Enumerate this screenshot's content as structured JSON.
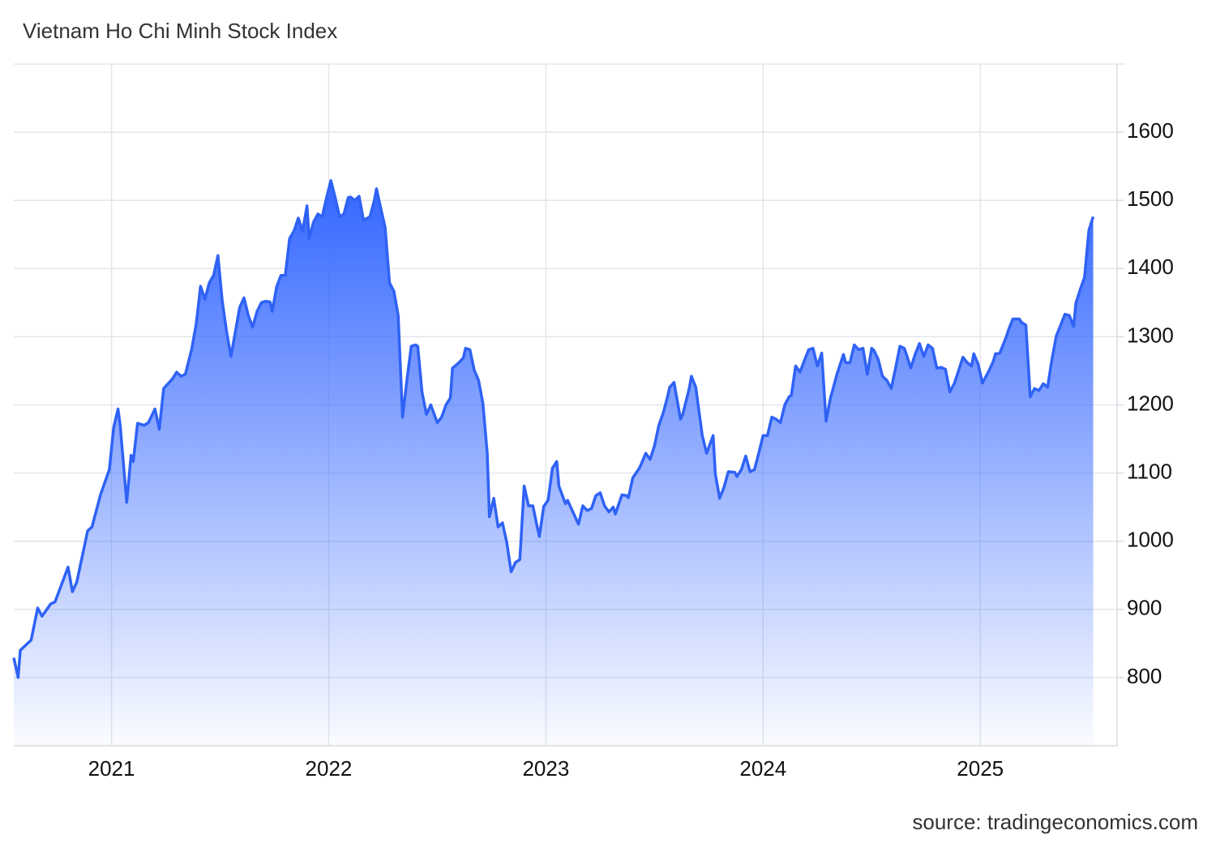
{
  "chart_data": {
    "type": "area",
    "title": "Vietnam Ho Chi Minh Stock Index",
    "source": "source: tradingeconomics.com",
    "color": "#2f62f5",
    "grid": true,
    "xlim": [
      2020.55,
      2025.63
    ],
    "xticks": [
      2021,
      2022,
      2023,
      2024,
      2025
    ],
    "ylim": [
      700,
      1700
    ],
    "yticks": [
      800,
      900,
      1000,
      1100,
      1200,
      1300,
      1400,
      1500,
      1600
    ],
    "x": [
      2020.55,
      2020.57,
      2020.58,
      2020.63,
      2020.66,
      2020.68,
      2020.72,
      2020.74,
      2020.8,
      2020.82,
      2020.84,
      2020.89,
      2020.91,
      2020.95,
      2020.99,
      2021.01,
      2021.03,
      2021.04,
      2021.07,
      2021.09,
      2021.1,
      2021.12,
      2021.15,
      2021.17,
      2021.2,
      2021.22,
      2021.24,
      2021.28,
      2021.3,
      2021.32,
      2021.34,
      2021.37,
      2021.39,
      2021.41,
      2021.43,
      2021.45,
      2021.47,
      2021.49,
      2021.51,
      2021.53,
      2021.55,
      2021.57,
      2021.59,
      2021.61,
      2021.63,
      2021.65,
      2021.67,
      2021.69,
      2021.71,
      2021.73,
      2021.74,
      2021.76,
      2021.78,
      2021.8,
      2021.82,
      2021.84,
      2021.86,
      2021.88,
      2021.9,
      2021.91,
      2021.93,
      2021.95,
      2021.97,
      2021.99,
      2022.01,
      2022.03,
      2022.05,
      2022.07,
      2022.09,
      2022.1,
      2022.12,
      2022.14,
      2022.16,
      2022.19,
      2022.21,
      2022.22,
      2022.24,
      2022.26,
      2022.28,
      2022.3,
      2022.32,
      2022.34,
      2022.36,
      2022.38,
      2022.4,
      2022.41,
      2022.43,
      2022.45,
      2022.47,
      2022.5,
      2022.52,
      2022.54,
      2022.56,
      2022.57,
      2022.6,
      2022.62,
      2022.63,
      2022.65,
      2022.67,
      2022.69,
      2022.71,
      2022.73,
      2022.74,
      2022.76,
      2022.78,
      2022.8,
      2022.82,
      2022.84,
      2022.86,
      2022.88,
      2022.9,
      2022.92,
      2022.94,
      2022.96,
      2022.97,
      2022.99,
      2023.01,
      2023.03,
      2023.05,
      2023.06,
      2023.09,
      2023.1,
      2023.13,
      2023.15,
      2023.17,
      2023.19,
      2023.21,
      2023.23,
      2023.25,
      2023.27,
      2023.29,
      2023.31,
      2023.32,
      2023.35,
      2023.37,
      2023.38,
      2023.4,
      2023.43,
      2023.44,
      2023.46,
      2023.48,
      2023.5,
      2023.52,
      2023.54,
      2023.56,
      2023.57,
      2023.59,
      2023.62,
      2023.63,
      2023.66,
      2023.67,
      2023.69,
      2023.72,
      2023.74,
      2023.77,
      2023.78,
      2023.8,
      2023.82,
      2023.84,
      2023.87,
      2023.88,
      2023.9,
      2023.92,
      2023.94,
      2023.96,
      2023.98,
      2024.0,
      2024.02,
      2024.04,
      2024.06,
      2024.08,
      2024.1,
      2024.12,
      2024.13,
      2024.15,
      2024.17,
      2024.19,
      2024.21,
      2024.23,
      2024.25,
      2024.27,
      2024.29,
      2024.31,
      2024.32,
      2024.34,
      2024.37,
      2024.38,
      2024.4,
      2024.42,
      2024.44,
      2024.46,
      2024.48,
      2024.5,
      2024.51,
      2024.53,
      2024.55,
      2024.57,
      2024.59,
      2024.61,
      2024.63,
      2024.65,
      2024.66,
      2024.68,
      2024.7,
      2024.72,
      2024.74,
      2024.76,
      2024.78,
      2024.8,
      2024.82,
      2024.84,
      2024.86,
      2024.88,
      2024.9,
      2024.92,
      2024.94,
      2024.96,
      2024.97,
      2024.99,
      2025.01,
      2025.04,
      2025.06,
      2025.07,
      2025.09,
      2025.12,
      2025.13,
      2025.15,
      2025.18,
      2025.19,
      2025.21,
      2025.23,
      2025.25,
      2025.27,
      2025.29,
      2025.31,
      2025.33,
      2025.35,
      2025.37,
      2025.39,
      2025.41,
      2025.43,
      2025.44,
      2025.46,
      2025.48,
      2025.5,
      2025.52
    ],
    "values": [
      829,
      800,
      840,
      855,
      902,
      890,
      908,
      911,
      962,
      926,
      940,
      1015,
      1021,
      1069,
      1105,
      1167,
      1194,
      1170,
      1057,
      1126,
      1117,
      1173,
      1170,
      1174,
      1194,
      1164,
      1224,
      1238,
      1248,
      1242,
      1245,
      1283,
      1319,
      1374,
      1355,
      1379,
      1390,
      1419,
      1352,
      1307,
      1271,
      1307,
      1343,
      1357,
      1331,
      1314,
      1337,
      1350,
      1352,
      1351,
      1337,
      1373,
      1390,
      1390,
      1444,
      1455,
      1474,
      1455,
      1492,
      1444,
      1468,
      1480,
      1476,
      1504,
      1529,
      1504,
      1476,
      1480,
      1504,
      1505,
      1500,
      1506,
      1471,
      1476,
      1500,
      1517,
      1488,
      1460,
      1379,
      1367,
      1331,
      1182,
      1236,
      1286,
      1288,
      1286,
      1218,
      1186,
      1200,
      1174,
      1182,
      1200,
      1210,
      1254,
      1262,
      1269,
      1283,
      1281,
      1251,
      1236,
      1202,
      1129,
      1036,
      1063,
      1021,
      1027,
      998,
      955,
      969,
      973,
      1081,
      1052,
      1052,
      1021,
      1007,
      1051,
      1060,
      1107,
      1117,
      1081,
      1055,
      1060,
      1039,
      1025,
      1052,
      1045,
      1048,
      1067,
      1071,
      1052,
      1043,
      1050,
      1040,
      1068,
      1067,
      1064,
      1093,
      1107,
      1114,
      1129,
      1120,
      1140,
      1170,
      1188,
      1212,
      1226,
      1233,
      1179,
      1186,
      1224,
      1242,
      1226,
      1155,
      1129,
      1155,
      1099,
      1063,
      1079,
      1102,
      1101,
      1095,
      1105,
      1125,
      1102,
      1105,
      1129,
      1155,
      1155,
      1182,
      1179,
      1174,
      1200,
      1212,
      1214,
      1257,
      1248,
      1265,
      1281,
      1283,
      1257,
      1276,
      1176,
      1210,
      1221,
      1245,
      1274,
      1262,
      1262,
      1288,
      1281,
      1283,
      1245,
      1283,
      1280,
      1267,
      1242,
      1236,
      1224,
      1254,
      1286,
      1283,
      1274,
      1254,
      1274,
      1290,
      1271,
      1288,
      1283,
      1254,
      1255,
      1252,
      1219,
      1231,
      1250,
      1270,
      1262,
      1257,
      1275,
      1260,
      1232,
      1250,
      1264,
      1275,
      1276,
      1300,
      1310,
      1326,
      1326,
      1321,
      1317,
      1212,
      1224,
      1221,
      1231,
      1226,
      1267,
      1301,
      1317,
      1333,
      1331,
      1315,
      1349,
      1369,
      1387,
      1456,
      1476
    ]
  }
}
